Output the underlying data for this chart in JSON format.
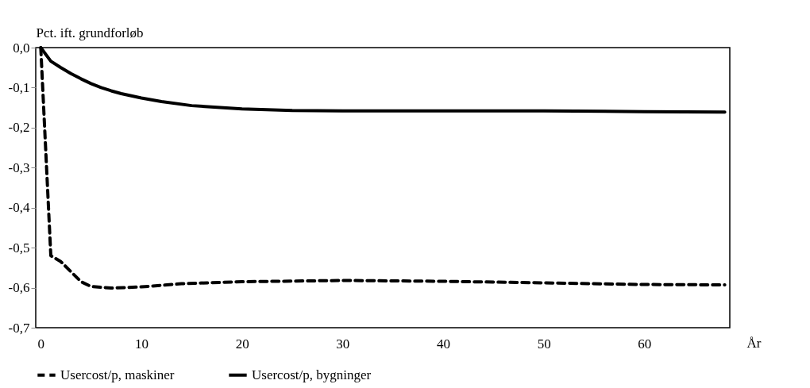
{
  "chart_data": {
    "type": "line",
    "ylabel": "Pct. ift. grundforløb",
    "xlabel": "År",
    "xlim": [
      -0.5,
      68.5
    ],
    "xticks": [
      0,
      10,
      20,
      30,
      40,
      50,
      60
    ],
    "ylim": [
      -0.7,
      0
    ],
    "yticks": [
      {
        "value": 0,
        "label": "0,0"
      },
      {
        "value": -0.1,
        "label": "-0,1"
      },
      {
        "value": -0.2,
        "label": "-0,2"
      },
      {
        "value": -0.3,
        "label": "-0,3"
      },
      {
        "value": -0.4,
        "label": "-0,4"
      },
      {
        "value": -0.5,
        "label": "-0,5"
      },
      {
        "value": -0.6,
        "label": "-0,6"
      },
      {
        "value": -0.7,
        "label": "-0,7"
      }
    ],
    "grid": false,
    "legend": "bottom",
    "marker": "none",
    "series": [
      {
        "name": "Usercost/p, maskiner",
        "color": "#000000",
        "line_style": "dashed",
        "x": [
          0,
          1,
          2,
          3,
          4,
          5,
          7,
          10,
          14,
          20,
          30,
          40,
          50,
          60,
          68
        ],
        "values": [
          0,
          -0.52,
          -0.535,
          -0.56,
          -0.585,
          -0.597,
          -0.601,
          -0.598,
          -0.59,
          -0.585,
          -0.582,
          -0.584,
          -0.588,
          -0.592,
          -0.593
        ]
      },
      {
        "name": "Usercost/p, bygninger",
        "color": "#000000",
        "line_style": "solid",
        "x": [
          0,
          1,
          2,
          3,
          4,
          5,
          6,
          7,
          8,
          10,
          12,
          15,
          20,
          25,
          30,
          40,
          50,
          60,
          68
        ],
        "values": [
          0,
          -0.034,
          -0.05,
          -0.065,
          -0.078,
          -0.09,
          -0.1,
          -0.108,
          -0.115,
          -0.126,
          -0.135,
          -0.145,
          -0.153,
          -0.157,
          -0.158,
          -0.158,
          -0.158,
          -0.16,
          -0.161
        ]
      }
    ]
  }
}
